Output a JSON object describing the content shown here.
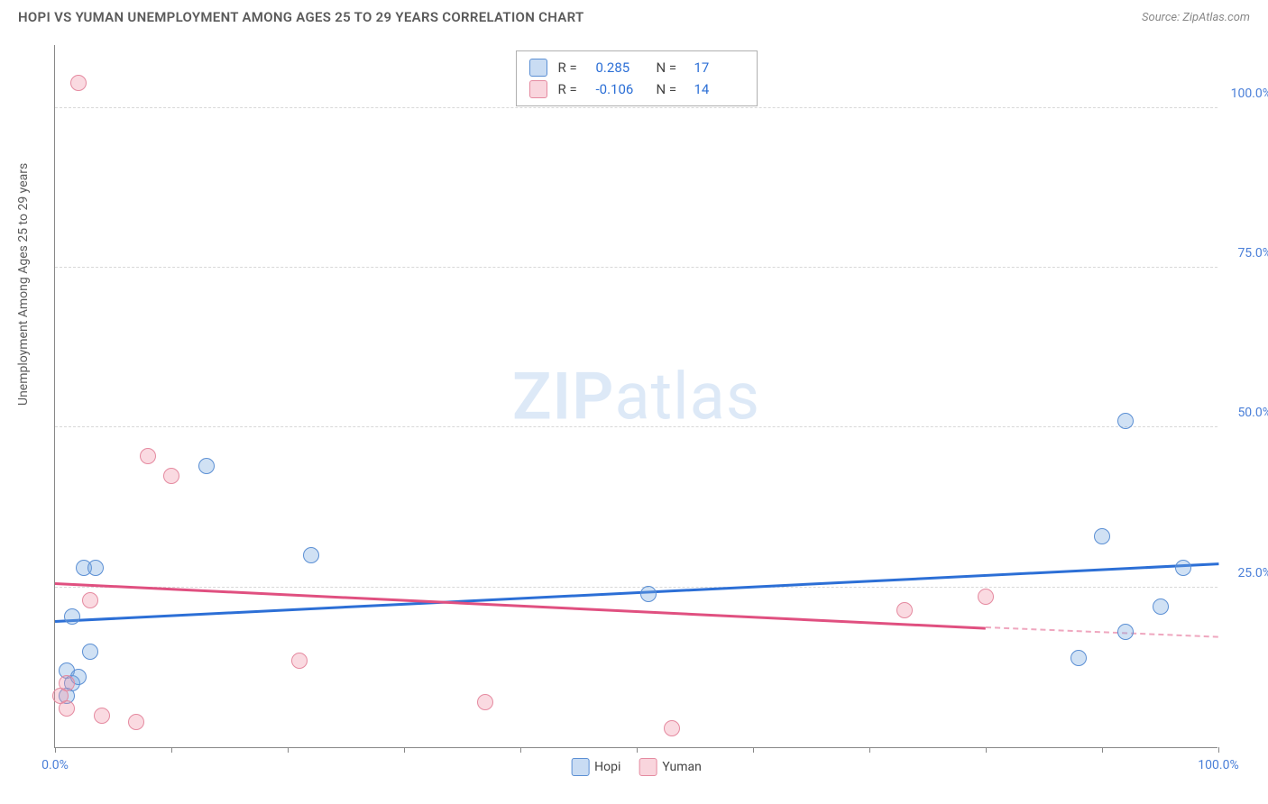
{
  "title": "HOPI VS YUMAN UNEMPLOYMENT AMONG AGES 25 TO 29 YEARS CORRELATION CHART",
  "source": "Source: ZipAtlas.com",
  "y_axis_label": "Unemployment Among Ages 25 to 29 years",
  "watermark": {
    "bold": "ZIP",
    "light": "atlas"
  },
  "chart": {
    "type": "scatter",
    "xlim": [
      0,
      100
    ],
    "ylim": [
      0,
      110
    ],
    "x_ticks_pct": [
      0,
      10,
      20,
      30,
      40,
      50,
      60,
      70,
      80,
      90,
      100
    ],
    "x_tick_labels": {
      "0": "0.0%",
      "100": "100.0%"
    },
    "y_gridlines": [
      25,
      50,
      75,
      100
    ],
    "y_tick_labels": {
      "25": "25.0%",
      "50": "50.0%",
      "75": "75.0%",
      "100": "100.0%"
    },
    "grid_color": "#d8d8d8",
    "axis_color": "#888888",
    "background_color": "#ffffff",
    "label_fontsize": 14,
    "tick_color": "#4a7fd8",
    "point_radius": 9,
    "series": [
      {
        "name": "Hopi",
        "color_fill": "rgba(120,168,224,0.35)",
        "color_stroke": "#5b8fd4",
        "trend_color": "#2c6fd6",
        "R": "0.285",
        "N": "17",
        "trend": {
          "x1": 0,
          "y1": 20,
          "x2": 100,
          "y2": 29
        },
        "points": [
          {
            "x": 1.5,
            "y": 20.5
          },
          {
            "x": 3,
            "y": 15
          },
          {
            "x": 2.5,
            "y": 28
          },
          {
            "x": 3.5,
            "y": 28
          },
          {
            "x": 1,
            "y": 12
          },
          {
            "x": 1.5,
            "y": 10
          },
          {
            "x": 13,
            "y": 44
          },
          {
            "x": 22,
            "y": 30
          },
          {
            "x": 51,
            "y": 24
          },
          {
            "x": 88,
            "y": 14
          },
          {
            "x": 92,
            "y": 18
          },
          {
            "x": 95,
            "y": 22
          },
          {
            "x": 97,
            "y": 28
          },
          {
            "x": 90,
            "y": 33
          },
          {
            "x": 92,
            "y": 51
          },
          {
            "x": 1,
            "y": 8
          },
          {
            "x": 2,
            "y": 11
          }
        ]
      },
      {
        "name": "Yuman",
        "color_fill": "rgba(240,150,170,0.35)",
        "color_stroke": "#e58aa0",
        "trend_color": "#e05080",
        "R": "-0.106",
        "N": "14",
        "trend_solid": {
          "x1": 0,
          "y1": 26,
          "x2": 80,
          "y2": 19
        },
        "trend_dash": {
          "x1": 80,
          "y1": 19,
          "x2": 100,
          "y2": 17.5
        },
        "points": [
          {
            "x": 2,
            "y": 104
          },
          {
            "x": 8,
            "y": 45.5
          },
          {
            "x": 10,
            "y": 42.5
          },
          {
            "x": 3,
            "y": 23
          },
          {
            "x": 1,
            "y": 10
          },
          {
            "x": 0.5,
            "y": 8
          },
          {
            "x": 1,
            "y": 6
          },
          {
            "x": 4,
            "y": 5
          },
          {
            "x": 7,
            "y": 4
          },
          {
            "x": 21,
            "y": 13.5
          },
          {
            "x": 37,
            "y": 7
          },
          {
            "x": 53,
            "y": 3
          },
          {
            "x": 73,
            "y": 21.5
          },
          {
            "x": 80,
            "y": 23.5
          }
        ]
      }
    ]
  },
  "stats_labels": {
    "R": "R  =",
    "N": "N  ="
  },
  "bottom_legend": [
    "Hopi",
    "Yuman"
  ]
}
